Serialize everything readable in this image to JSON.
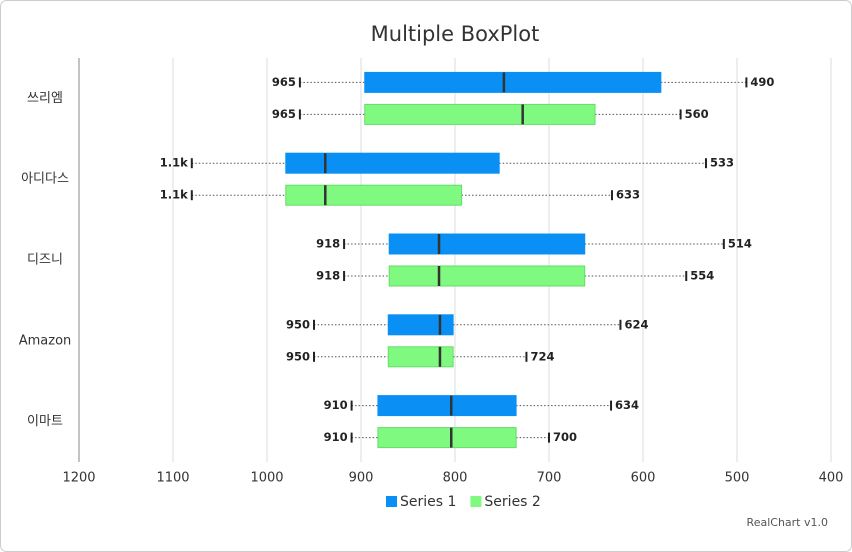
{
  "chart_data": {
    "type": "boxplot",
    "title": "Multiple BoxPlot",
    "orientation": "horizontal",
    "reversed": true,
    "grid": true,
    "legend": "bottom",
    "credit": "RealChart v1.0",
    "categories": [
      "쓰리엠",
      "아디다스",
      "디즈니",
      "Amazon",
      "이마트"
    ],
    "xlim": [
      1200,
      400
    ],
    "xticks": [
      1200,
      1100,
      1000,
      900,
      800,
      700,
      600,
      500,
      400
    ],
    "series": [
      {
        "name": "Series 1",
        "color": "#0a90f5",
        "high": [
          965,
          1080,
          918,
          950,
          910
        ],
        "high_labels": [
          "965",
          "1.1k",
          "918",
          "950",
          "910"
        ],
        "q3": [
          896,
          980,
          870,
          871,
          882
        ],
        "median": [
          748,
          938,
          817,
          816,
          804
        ],
        "q1": [
          581,
          753,
          662,
          802,
          735
        ],
        "low": [
          490,
          533,
          514,
          624,
          634
        ]
      },
      {
        "name": "Series 2",
        "color": "#80f980",
        "high": [
          965,
          1080,
          918,
          950,
          910
        ],
        "high_labels": [
          "965",
          "1.1k",
          "918",
          "950",
          "910"
        ],
        "q3": [
          896,
          980,
          870,
          871,
          882
        ],
        "median": [
          728,
          938,
          817,
          816,
          804
        ],
        "q1": [
          651,
          793,
          662,
          802,
          735
        ],
        "low": [
          560,
          633,
          554,
          724,
          700
        ]
      }
    ]
  }
}
